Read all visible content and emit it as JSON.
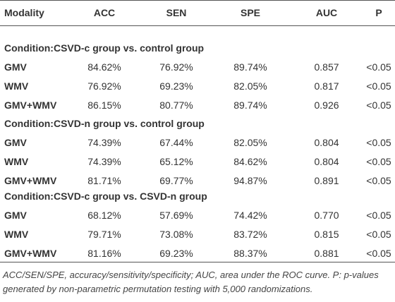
{
  "table": {
    "columns": [
      "Modality",
      "ACC",
      "SEN",
      "SPE",
      "AUC",
      "P"
    ],
    "groups": [
      {
        "condition": "Condition:CSVD-c group vs. control group",
        "rows": [
          [
            "GMV",
            "84.62%",
            "76.92%",
            "89.74%",
            "0.857",
            "<0.05"
          ],
          [
            "WMV",
            "76.92%",
            "69.23%",
            "82.05%",
            "0.817",
            "<0.05"
          ],
          [
            "GMV+WMV",
            "86.15%",
            "80.77%",
            "89.74%",
            "0.926",
            "<0.05"
          ]
        ]
      },
      {
        "condition": "Condition:CSVD-n group vs. control group",
        "rows": [
          [
            "GMV",
            "74.39%",
            "67.44%",
            "82.05%",
            "0.804",
            "<0.05"
          ],
          [
            "WMV",
            "74.39%",
            "65.12%",
            "84.62%",
            "0.804",
            "<0.05"
          ],
          [
            "GMV+WMV",
            "81.71%",
            "69.77%",
            "94.87%",
            "0.891",
            "<0.05"
          ]
        ]
      },
      {
        "condition": "Condition:CSVD-c group vs. CSVD-n group",
        "rows": [
          [
            "GMV",
            "68.12%",
            "57.69%",
            "74.42%",
            "0.770",
            "<0.05"
          ],
          [
            "WMV",
            "79.71%",
            "73.08%",
            "83.72%",
            "0.815",
            "<0.05"
          ],
          [
            "GMV+WMV",
            "81.16%",
            "69.23%",
            "88.37%",
            "0.881",
            "<0.05"
          ]
        ]
      }
    ],
    "footnote": "ACC/SEN/SPE, accuracy/sensitivity/specificity; AUC, area under the ROC curve. P: p-values generated by non-parametric permutation testing with 5,000 randomizations."
  }
}
